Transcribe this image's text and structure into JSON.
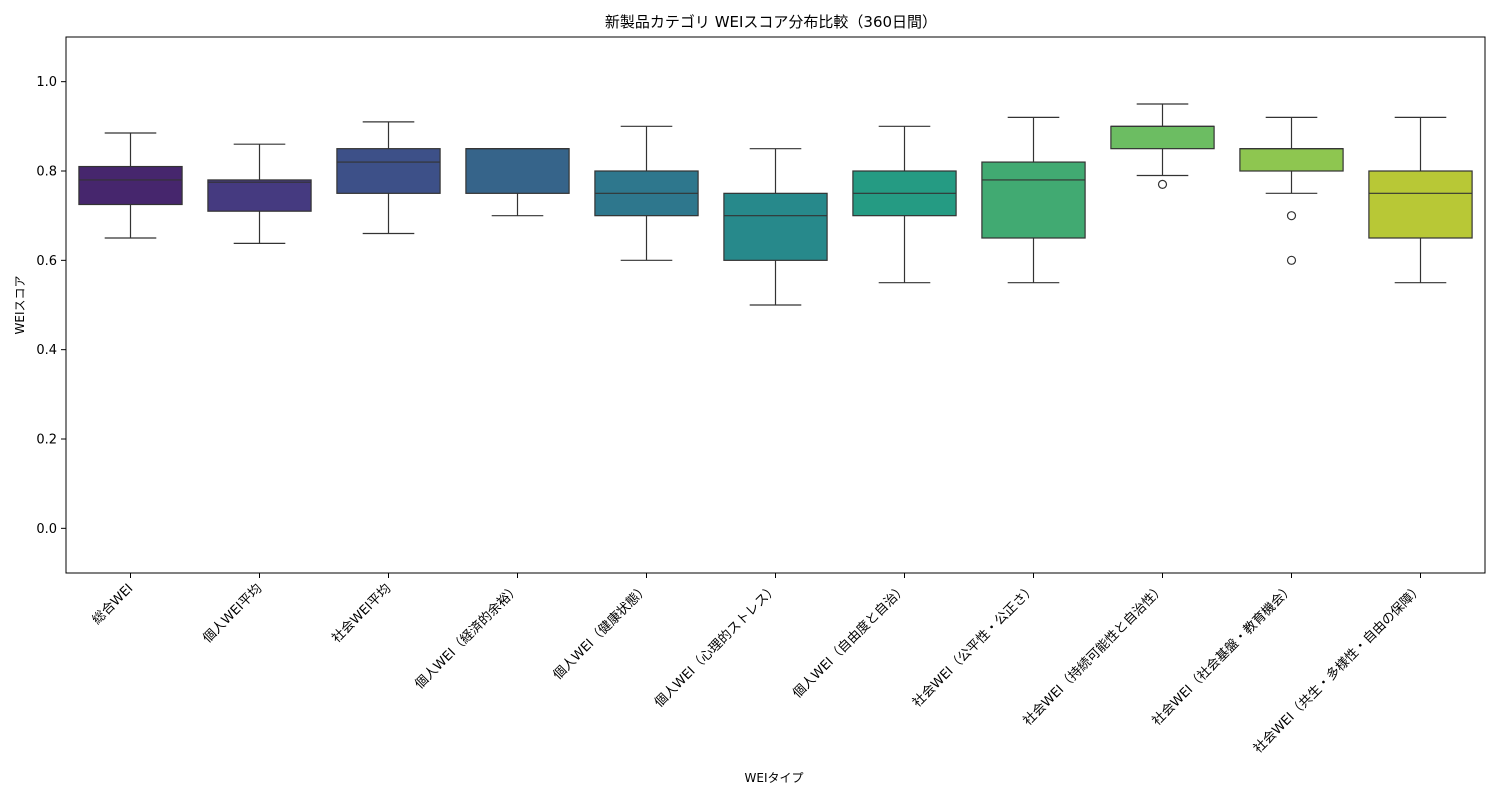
{
  "chart_data": {
    "type": "box",
    "title": "新製品カテゴリ WEIスコア分布比較（360日間）",
    "xlabel": "WEIタイプ",
    "ylabel": "WEIスコア",
    "ylim": [
      -0.1,
      1.1
    ],
    "yticks": [
      "0.0",
      "0.2",
      "0.4",
      "0.6",
      "0.8",
      "1.0"
    ],
    "ytick_values": [
      0.0,
      0.2,
      0.4,
      0.6,
      0.8,
      1.0
    ],
    "grid": false,
    "categories": [
      "総合WEI",
      "個人WEI平均",
      "社会WEI平均",
      "個人WEI（経済的余裕）",
      "個人WEI（健康状態）",
      "個人WEI（心理的ストレス）",
      "個人WEI（自由度と自治）",
      "社会WEI（公平性・公正さ）",
      "社会WEI（持続可能性と自治性）",
      "社会WEI（社会基盤・教育機会）",
      "社会WEI（共生・多様性・自由の保障）"
    ],
    "boxes": [
      {
        "whisker_low": 0.65,
        "q1": 0.725,
        "median": 0.78,
        "q3": 0.81,
        "whisker_high": 0.885,
        "outliers": [],
        "color": "#46266d"
      },
      {
        "whisker_low": 0.638,
        "q1": 0.71,
        "median": 0.775,
        "q3": 0.78,
        "whisker_high": 0.86,
        "outliers": [],
        "color": "#453a80"
      },
      {
        "whisker_low": 0.66,
        "q1": 0.75,
        "median": 0.82,
        "q3": 0.85,
        "whisker_high": 0.91,
        "outliers": [],
        "color": "#3d5088"
      },
      {
        "whisker_low": 0.7,
        "q1": 0.75,
        "median": 0.85,
        "q3": 0.85,
        "whisker_high": 0.85,
        "outliers": [],
        "color": "#36648a"
      },
      {
        "whisker_low": 0.6,
        "q1": 0.7,
        "median": 0.75,
        "q3": 0.8,
        "whisker_high": 0.9,
        "outliers": [],
        "color": "#2e778d"
      },
      {
        "whisker_low": 0.5,
        "q1": 0.6,
        "median": 0.7,
        "q3": 0.75,
        "whisker_high": 0.85,
        "outliers": [],
        "color": "#27898b"
      },
      {
        "whisker_low": 0.55,
        "q1": 0.7,
        "median": 0.75,
        "q3": 0.8,
        "whisker_high": 0.9,
        "outliers": [],
        "color": "#259b83"
      },
      {
        "whisker_low": 0.55,
        "q1": 0.65,
        "median": 0.78,
        "q3": 0.82,
        "whisker_high": 0.92,
        "outliers": [],
        "color": "#41aa72"
      },
      {
        "whisker_low": 0.79,
        "q1": 0.85,
        "median": 0.9,
        "q3": 0.9,
        "whisker_high": 0.95,
        "outliers": [
          0.77
        ],
        "color": "#6cbd62"
      },
      {
        "whisker_low": 0.75,
        "q1": 0.8,
        "median": 0.85,
        "q3": 0.85,
        "whisker_high": 0.92,
        "outliers": [
          0.7,
          0.6
        ],
        "color": "#8ec650"
      },
      {
        "whisker_low": 0.55,
        "q1": 0.65,
        "median": 0.75,
        "q3": 0.8,
        "whisker_high": 0.92,
        "outliers": [],
        "color": "#b8c836"
      }
    ]
  }
}
